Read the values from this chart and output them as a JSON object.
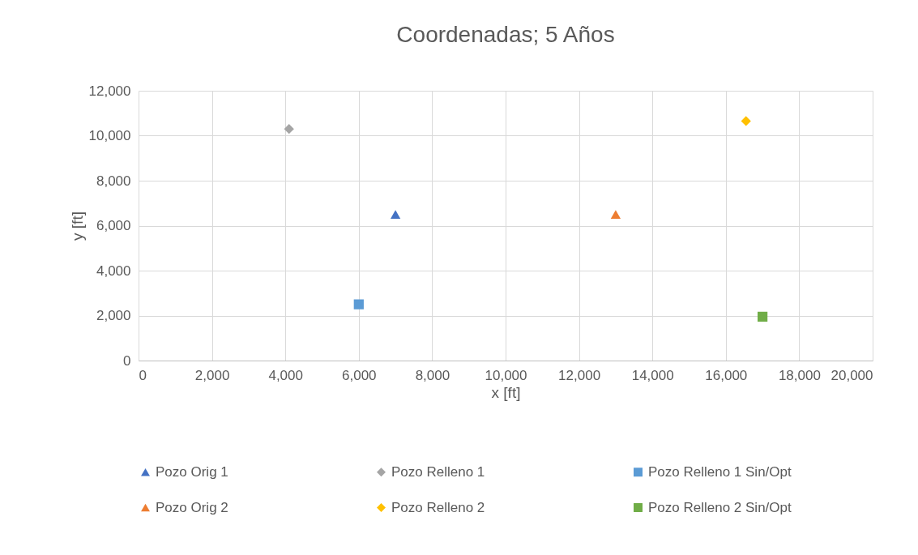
{
  "chart_data": {
    "type": "scatter",
    "title": "Coordenadas; 5 Años",
    "xlabel": "x [ft]",
    "ylabel": "y [ft]",
    "xlim": [
      0,
      20000
    ],
    "xticks": [
      0,
      {
        "value": 2000,
        "label": "2,000"
      },
      {
        "value": 4000,
        "label": "4,000"
      },
      {
        "value": 6000,
        "label": "6,000"
      },
      {
        "value": 8000,
        "label": "8,000"
      },
      {
        "value": 10000,
        "label": "10,000"
      },
      {
        "value": 12000,
        "label": "12,000"
      },
      {
        "value": 14000,
        "label": "14,000"
      },
      {
        "value": 16000,
        "label": "16,000"
      },
      {
        "value": 18000,
        "label": "18,000"
      },
      {
        "value": 20000,
        "label": "20,000"
      }
    ],
    "ylim": [
      0,
      12000
    ],
    "yticks": [
      0,
      {
        "value": 2000,
        "label": "2,000"
      },
      {
        "value": 4000,
        "label": "4,000"
      },
      {
        "value": 6000,
        "label": "6,000"
      },
      {
        "value": 8000,
        "label": "8,000"
      },
      {
        "value": 10000,
        "label": "10,000"
      },
      {
        "value": 12000,
        "label": "12,000"
      }
    ],
    "grid": true,
    "legend": "bottom",
    "series": [
      {
        "name": "Pozo Orig 1",
        "color": "#4472c4",
        "marker": "triangle",
        "x": [
          7000
        ],
        "values": [
          6500
        ]
      },
      {
        "name": "Pozo Relleno 1",
        "color": "#a5a5a5",
        "marker": "diamond",
        "x": [
          4100
        ],
        "values": [
          10300
        ]
      },
      {
        "name": "Pozo Relleno 1 Sin/Opt",
        "color": "#5b9bd5",
        "marker": "square",
        "x": [
          6000
        ],
        "values": [
          2500
        ]
      },
      {
        "name": "Pozo Orig 2",
        "color": "#ed7d31",
        "marker": "triangle",
        "x": [
          13000
        ],
        "values": [
          6500
        ]
      },
      {
        "name": "Pozo Relleno 2",
        "color": "#ffc000",
        "marker": "diamond",
        "x": [
          16550
        ],
        "values": [
          10650
        ]
      },
      {
        "name": "Pozo Relleno 2 Sin/Opt",
        "color": "#70ad47",
        "marker": "square",
        "x": [
          17000
        ],
        "values": [
          1950
        ]
      }
    ]
  }
}
